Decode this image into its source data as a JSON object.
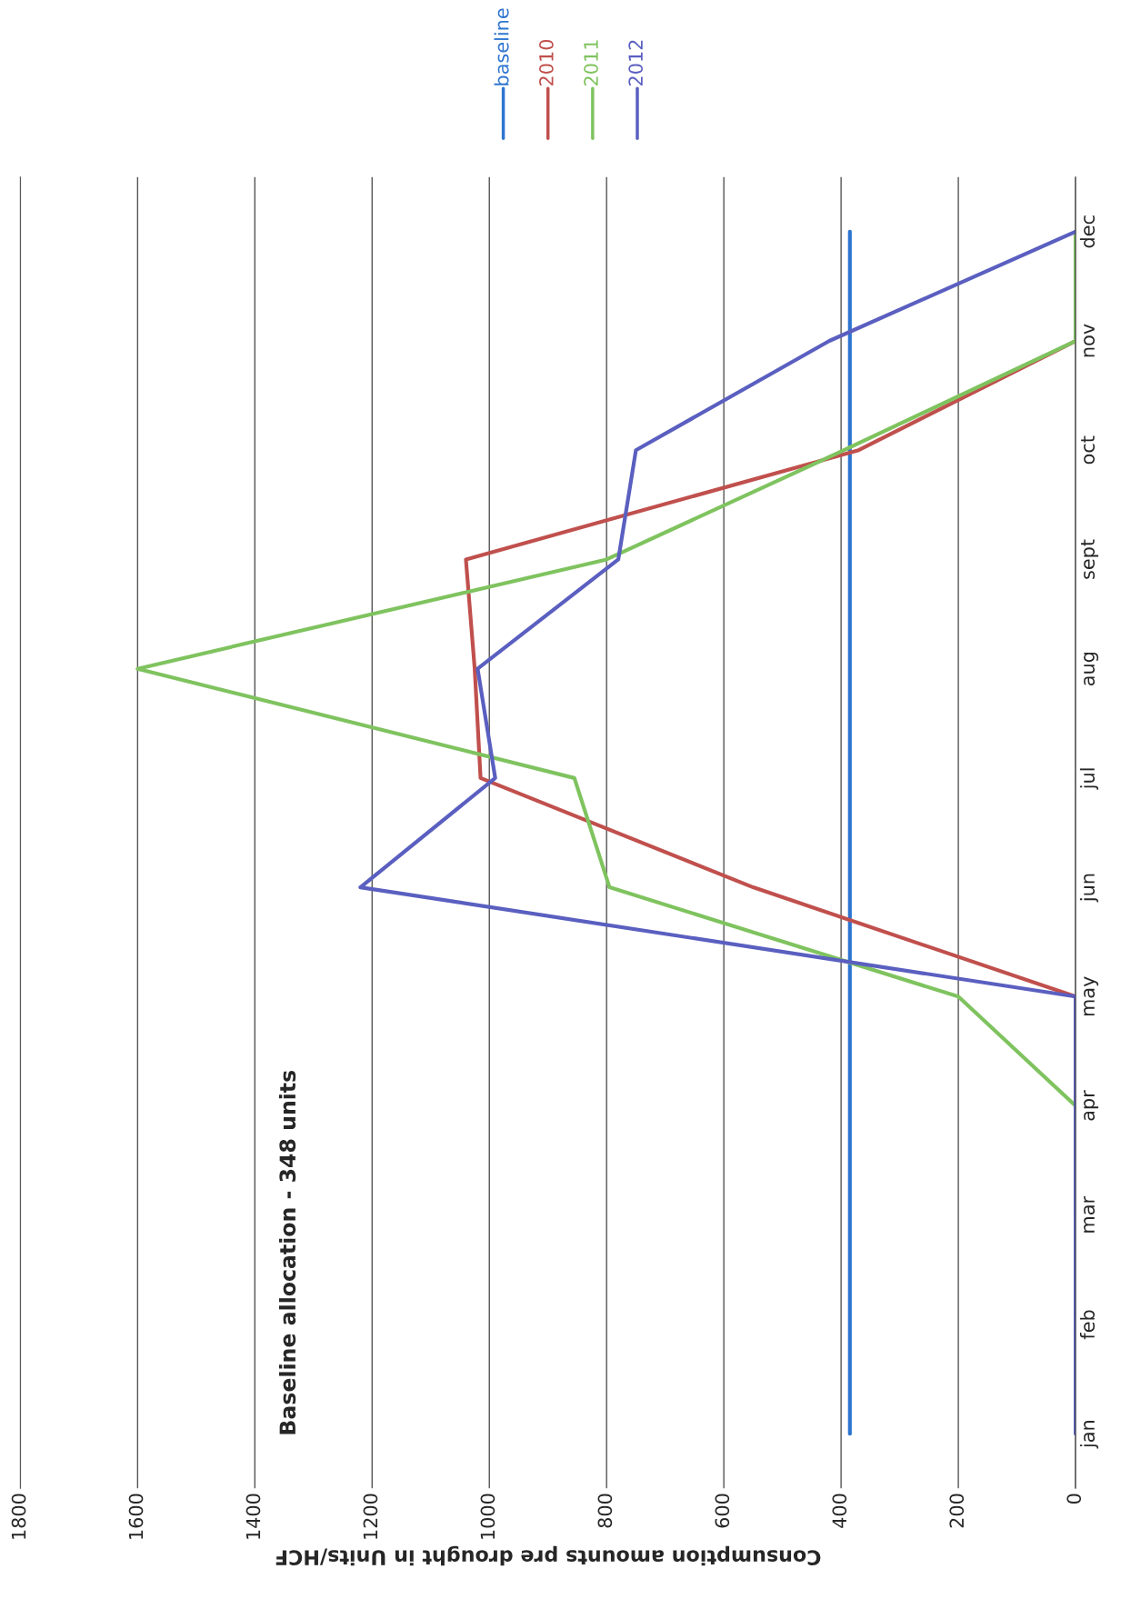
{
  "chart_data": {
    "type": "line",
    "orientation": "horizontal",
    "xlabel": "Consumption amounts pre drought in Units/HCF",
    "categories": [
      "dec",
      "nov",
      "oct",
      "sept",
      "aug",
      "jul",
      "jun",
      "may",
      "apr",
      "mar",
      "feb",
      "jan"
    ],
    "series": [
      {
        "name": "baseline",
        "color": "#2e75d0",
        "values": [
          385,
          385,
          385,
          385,
          385,
          385,
          385,
          385,
          385,
          385,
          385,
          385
        ]
      },
      {
        "name": "2010",
        "color": "#c0504d",
        "values": [
          0,
          0,
          370,
          1040,
          1025,
          1015,
          550,
          0,
          0,
          null,
          null,
          null
        ]
      },
      {
        "name": "2011",
        "color": "#7fc35f",
        "values": [
          0,
          0,
          395,
          800,
          1600,
          855,
          795,
          200,
          0,
          0,
          null,
          null
        ]
      },
      {
        "name": "2012",
        "color": "#5a5fc0",
        "values": [
          0,
          420,
          750,
          780,
          1020,
          990,
          1220,
          0,
          0,
          0,
          0,
          0
        ]
      }
    ],
    "xlim": [
      1800,
      0
    ],
    "xticks": [
      0,
      200,
      400,
      600,
      800,
      1000,
      1200,
      1400,
      1600,
      1800
    ],
    "grid": "x",
    "legend": "top right",
    "line_style": "solid",
    "marker": "none",
    "annotations": [
      "Baseline allocation - 348 units"
    ]
  }
}
